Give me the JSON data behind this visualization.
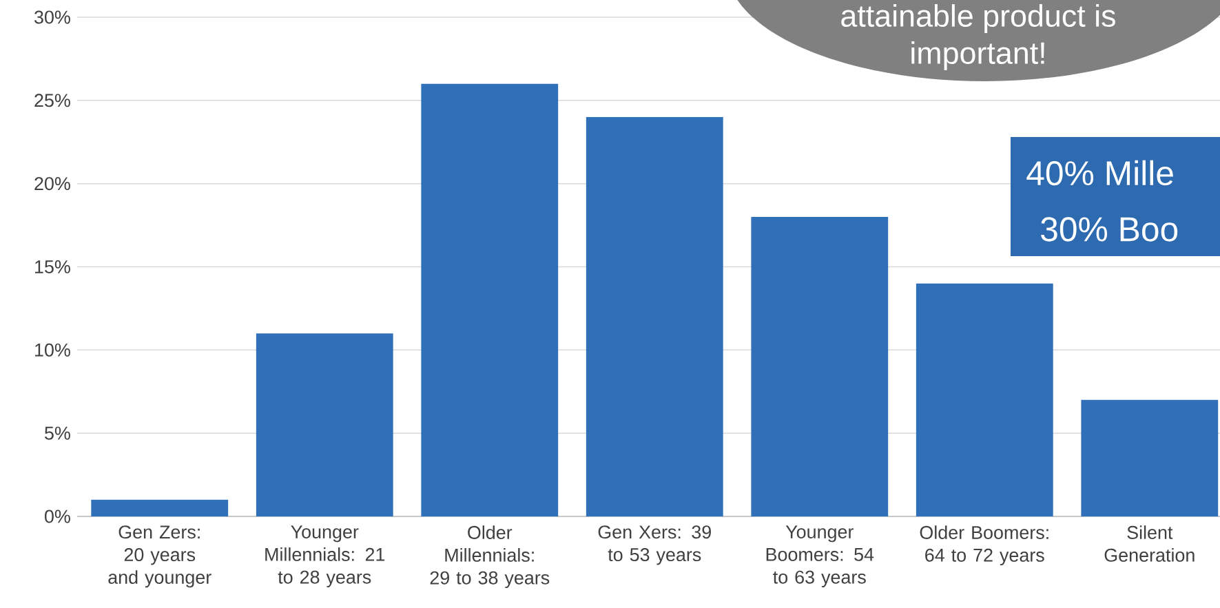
{
  "chart_data": {
    "type": "bar",
    "categories": [
      "Gen Zers: 20 years and younger",
      "Younger Millennials: 21 to 28 years",
      "Older Millennials: 29 to 38 years",
      "Gen Xers: 39 to 53 years",
      "Younger Boomers: 54 to 63 years",
      "Older Boomers: 64 to 72 years",
      "Silent Generation"
    ],
    "values": [
      1,
      11,
      26,
      24,
      18,
      14,
      7
    ],
    "color": "#3070b8",
    "ylim": [
      0,
      30
    ],
    "yticks": [
      {
        "value": 0,
        "label": "0%"
      },
      {
        "value": 5,
        "label": "5%"
      },
      {
        "value": 10,
        "label": "10%"
      },
      {
        "value": 15,
        "label": "15%"
      },
      {
        "value": 20,
        "label": "20%"
      },
      {
        "value": 25,
        "label": "25%"
      },
      {
        "value": 30,
        "label": "30%"
      }
    ],
    "grid": "y",
    "annotations": [
      "attainable product is",
      "important!",
      "40% Mille",
      "30% Boo"
    ]
  }
}
